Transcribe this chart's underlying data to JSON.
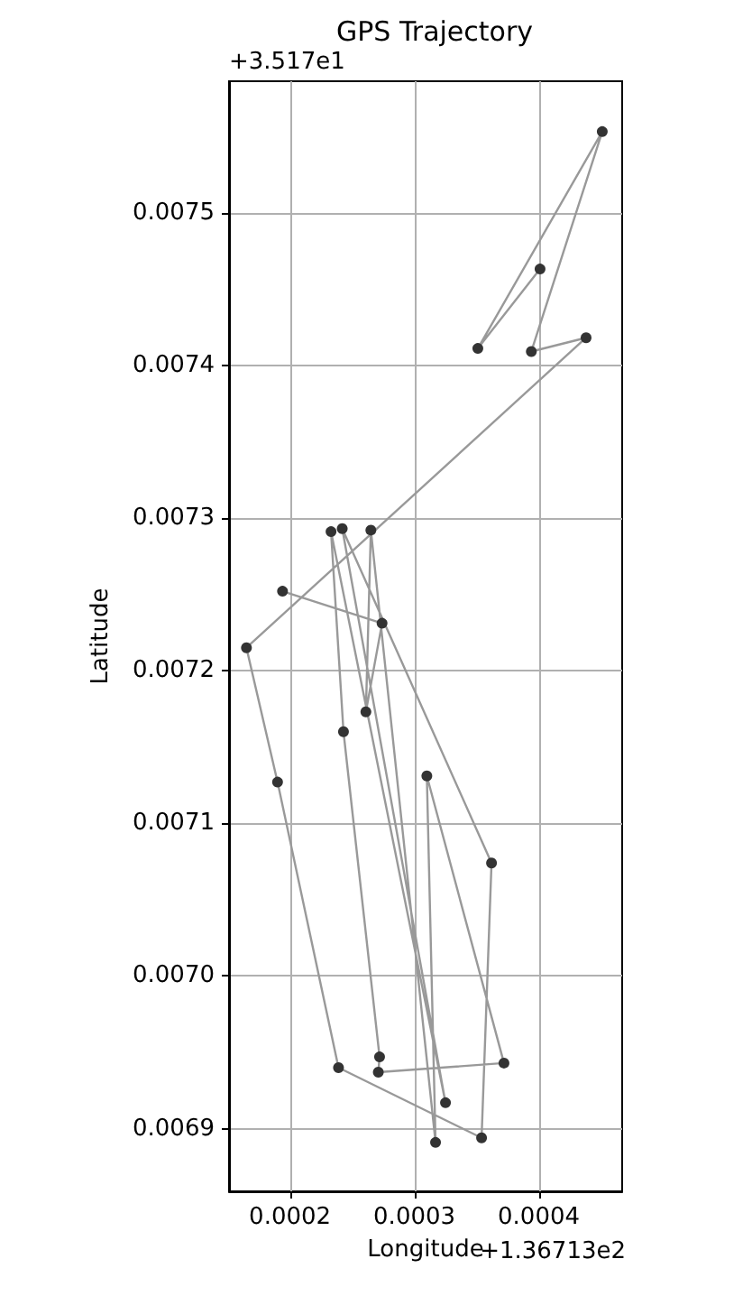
{
  "chart_data": {
    "type": "line",
    "title": "GPS Trajectory",
    "xlabel": "Longitude",
    "ylabel": "Latitude",
    "annotations": [
      "+3.517e1",
      "+1.36713e2"
    ],
    "series": [
      {
        "color": "#999999",
        "x": [
          0.000401,
          0.000351,
          0.000451,
          0.000394,
          0.000438,
          0.000165,
          0.00019,
          0.000239,
          0.000354,
          0.000362,
          0.000242,
          0.000325,
          0.000233,
          0.000243,
          0.000272,
          0.000271,
          0.000372,
          0.00031,
          0.000317,
          0.000265,
          0.000261,
          0.000274,
          0.000194
        ],
        "values": [
          0.007463,
          0.007411,
          0.007553,
          0.007409,
          0.007418,
          0.007215,
          0.007127,
          0.00694,
          0.006894,
          0.007074,
          0.007293,
          0.006917,
          0.007291,
          0.00716,
          0.006947,
          0.006937,
          0.006943,
          0.007131,
          0.006891,
          0.007292,
          0.007173,
          0.007231,
          0.007252
        ]
      }
    ],
    "marker": "circle",
    "line_style": "solid",
    "grid": true,
    "xlim": [
      0.000151,
      0.000467
    ],
    "ylim": [
      0.006859,
      0.007586
    ],
    "xticks": [
      0.0002,
      0.0003,
      0.0004
    ],
    "yticks": [
      0.0069,
      {
        "value": 0.007,
        "label": "0.0070"
      },
      0.0071,
      0.0072,
      0.0073,
      0.0074,
      0.0075
    ]
  }
}
